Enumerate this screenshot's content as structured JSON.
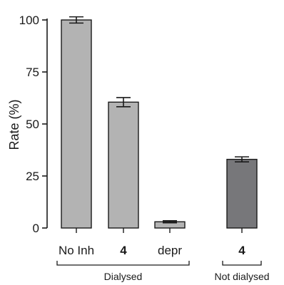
{
  "chart_data": {
    "type": "bar",
    "ylabel": "Rate (%)",
    "ylim": [
      0,
      100
    ],
    "yticks": [
      0,
      25,
      50,
      75,
      100
    ],
    "grid": false,
    "categories": [
      "No Inh",
      "4",
      "depr",
      "4"
    ],
    "values": [
      100,
      60.5,
      3,
      33
    ],
    "errors": [
      1.5,
      2.2,
      0.5,
      1.2
    ],
    "bold_categories": [
      false,
      true,
      false,
      true
    ],
    "bar_colors": [
      "#b3b3b3",
      "#b3b3b3",
      "#b3b3b3",
      "#77777a"
    ],
    "groups": [
      {
        "label": "Dialysed",
        "categories": [
          0,
          1,
          2
        ]
      },
      {
        "label": "Not dialysed",
        "categories": [
          3
        ]
      }
    ]
  }
}
